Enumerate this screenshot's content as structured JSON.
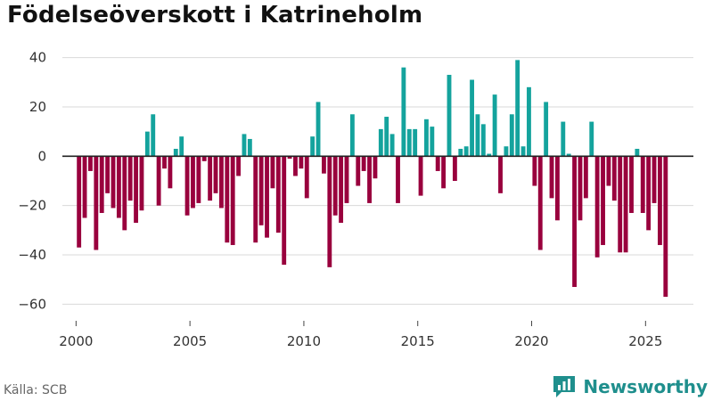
{
  "title": "Födelseöverskott i Katrineholm",
  "source": "Källa: SCB",
  "brand": "Newsworthy",
  "colors": {
    "positive": "#14a39d",
    "negative": "#99003d",
    "grid": "#d9d9d9",
    "zero": "#222222",
    "brand": "#1f8f8d"
  },
  "chart_data": {
    "type": "bar",
    "title": "Födelseöverskott i Katrineholm",
    "xlabel": "",
    "ylabel": "",
    "xlim": [
      1999.4,
      2027.1
    ],
    "ylim": [
      -66,
      46
    ],
    "yticks": [
      40,
      20,
      0,
      -20,
      -40,
      -60
    ],
    "ytick_labels": [
      "40",
      "20",
      "0",
      "−20",
      "−40",
      "−60"
    ],
    "xticks": [
      2000,
      2005,
      2010,
      2015,
      2020,
      2025
    ],
    "xtick_labels": [
      "2000",
      "2005",
      "2010",
      "2015",
      "2020",
      "2025"
    ],
    "grid": true,
    "bar_width_years": 0.19,
    "x": [
      2000.13,
      2000.38,
      2000.63,
      2000.88,
      2001.13,
      2001.38,
      2001.63,
      2001.88,
      2002.13,
      2002.38,
      2002.63,
      2002.88,
      2003.13,
      2003.38,
      2003.63,
      2003.88,
      2004.13,
      2004.38,
      2004.63,
      2004.88,
      2005.13,
      2005.38,
      2005.63,
      2005.88,
      2006.13,
      2006.38,
      2006.63,
      2006.88,
      2007.13,
      2007.38,
      2007.63,
      2007.88,
      2008.13,
      2008.38,
      2008.63,
      2008.88,
      2009.13,
      2009.38,
      2009.63,
      2009.88,
      2010.13,
      2010.38,
      2010.63,
      2010.88,
      2011.13,
      2011.38,
      2011.63,
      2011.88,
      2012.13,
      2012.38,
      2012.63,
      2012.88,
      2013.13,
      2013.38,
      2013.63,
      2013.88,
      2014.13,
      2014.38,
      2014.63,
      2014.88,
      2015.13,
      2015.38,
      2015.63,
      2015.88,
      2016.13,
      2016.38,
      2016.63,
      2016.88,
      2017.13,
      2017.38,
      2017.63,
      2017.88,
      2018.13,
      2018.38,
      2018.63,
      2018.88,
      2019.13,
      2019.38,
      2019.63,
      2019.88,
      2020.13,
      2020.38,
      2020.63,
      2020.88,
      2021.13,
      2021.38,
      2021.63,
      2021.88,
      2022.13,
      2022.38,
      2022.63,
      2022.88,
      2023.13,
      2023.38,
      2023.63,
      2023.88,
      2024.13,
      2024.38,
      2024.63,
      2024.88,
      2025.13,
      2025.38,
      2025.63,
      2025.88
    ],
    "values": [
      -37,
      -25,
      -6,
      -38,
      -23,
      -15,
      -21,
      -25,
      -30,
      -18,
      -27,
      -22,
      10,
      17,
      -20,
      -5,
      -13,
      3,
      8,
      -24,
      -21,
      -19,
      -2,
      -18,
      -15,
      -21,
      -35,
      -36,
      -8,
      9,
      7,
      -35,
      -28,
      -33,
      -13,
      -31,
      -44,
      -1,
      -8,
      -5,
      -17,
      8,
      22,
      -7,
      -45,
      -24,
      -27,
      -19,
      17,
      -12,
      -6,
      -19,
      -9,
      11,
      16,
      9,
      -19,
      36,
      11,
      11,
      -16,
      15,
      12,
      -6,
      -13,
      33,
      -10,
      3,
      4,
      31,
      17,
      13,
      1,
      25,
      -15,
      4,
      17,
      39,
      4,
      28,
      -12,
      -38,
      22,
      -17,
      -26,
      14,
      1,
      -53,
      -26,
      -17,
      14,
      -41,
      -36,
      -12,
      -18,
      -39,
      -39,
      -23,
      3,
      -23,
      -30,
      -19,
      -36,
      -57
    ]
  }
}
